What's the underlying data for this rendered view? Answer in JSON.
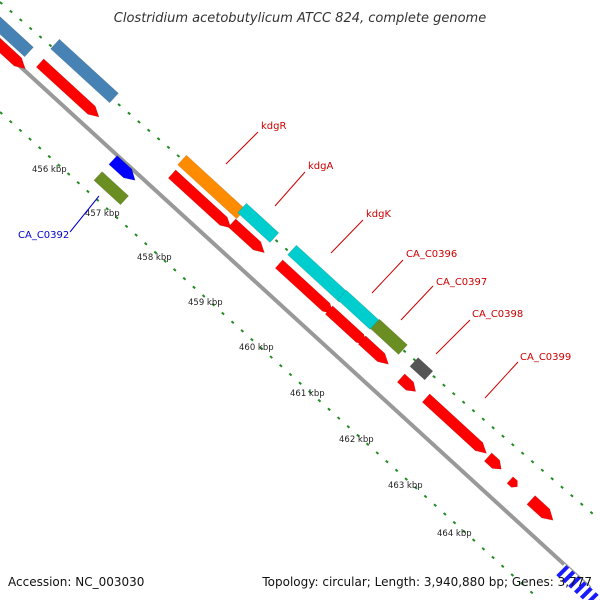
{
  "title": "Clostridium acetobutylicum ATCC 824, complete genome",
  "footer": {
    "accession": "Accession: NC_003030",
    "summary": "Topology: circular; Length: 3,940,880 bp; Genes: 3,777"
  },
  "ticks": [
    "456 kbp",
    "457 kbp",
    "458 kbp",
    "459 kbp",
    "460 kbp",
    "461 kbp",
    "462 kbp",
    "463 kbp",
    "464 kbp"
  ],
  "labels": {
    "CA_C0392": "CA_C0392",
    "kdgR": "kdgR",
    "kdgA": "kdgA",
    "kdgK": "kdgK",
    "CA_C0396": "CA_C0396",
    "CA_C0397": "CA_C0397",
    "CA_C0398": "CA_C0398",
    "CA_C0399": "CA_C0399"
  },
  "colors": {
    "cds": "#ff0000",
    "steelblue": "#4682b4",
    "orange": "#ff8c00",
    "cyan": "#00cdcd",
    "olive": "#6b8e23",
    "blue": "#0000ff",
    "gray": "#555555",
    "backbone": "#999999",
    "tick": "#228b22",
    "label_red": "#cc0000",
    "label_blue": "#0000cc"
  }
}
